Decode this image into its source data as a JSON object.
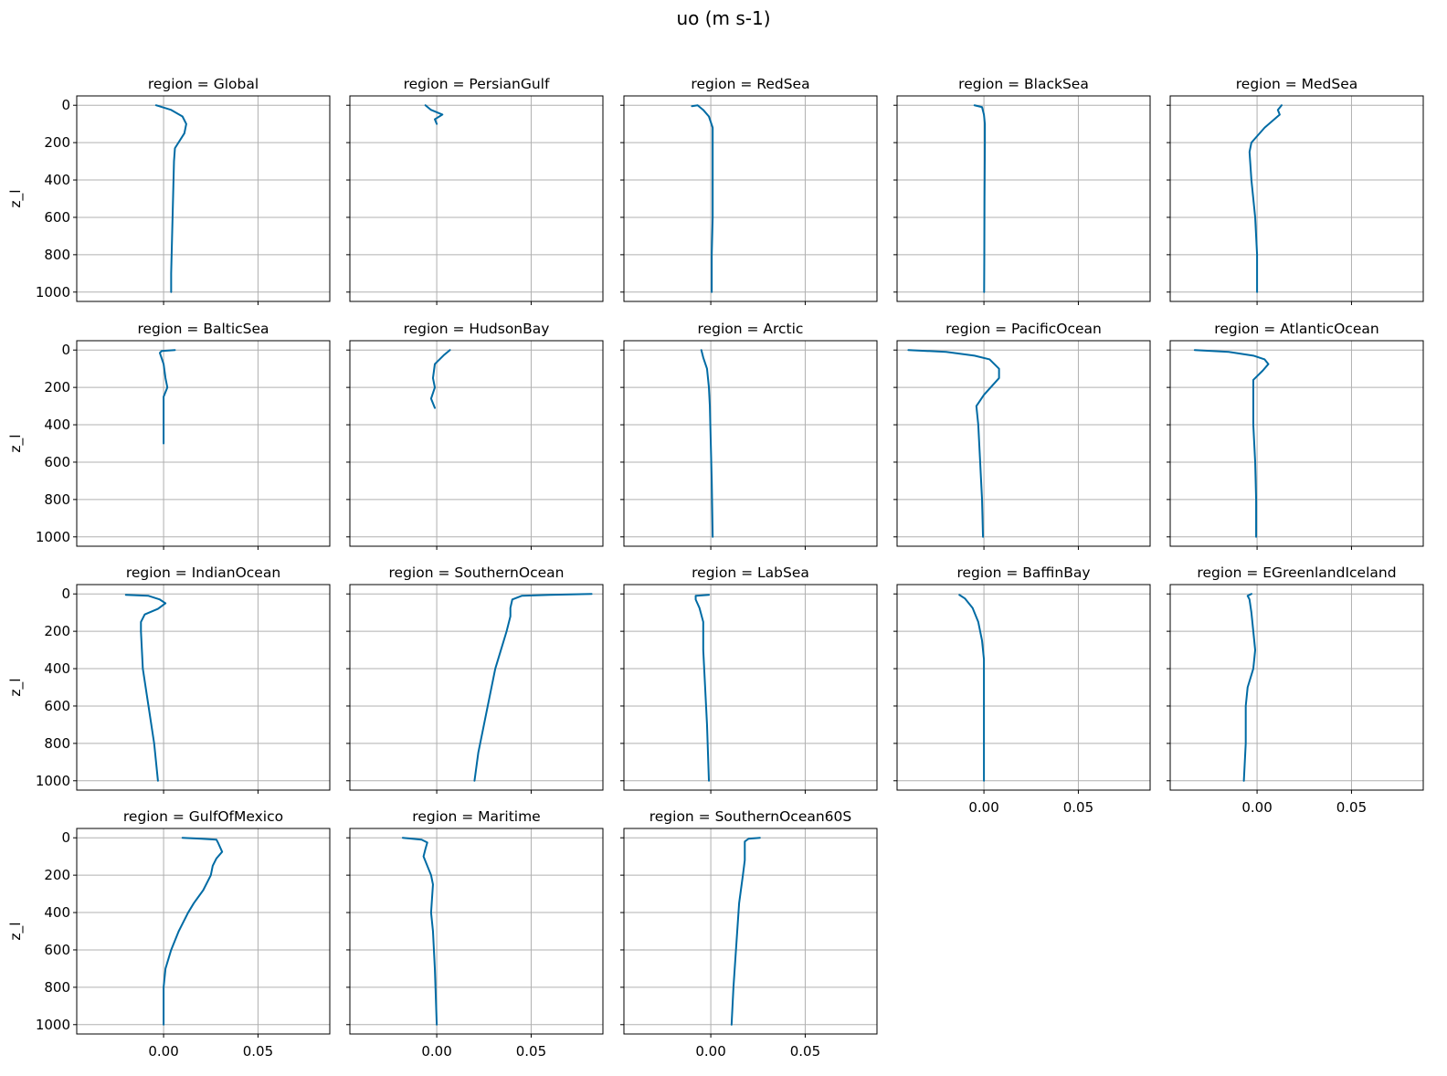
{
  "chart_data": {
    "type": "line",
    "title": "uo (m s-1)",
    "ylabel": "z_l",
    "xticks": [
      0.0,
      0.05
    ],
    "xtick_labels": [
      "0.00",
      "0.05"
    ],
    "yticks": [
      0,
      200,
      400,
      600,
      800,
      1000
    ],
    "ytick_labels": [
      "0",
      "200",
      "400",
      "600",
      "800",
      "1000"
    ],
    "xlim": [
      -0.046,
      0.088
    ],
    "ylim": [
      1050,
      -50
    ],
    "y_inverted": true,
    "grid": true,
    "line_color": "#006ba4",
    "layout": "4x5 facet grid, shared axes",
    "panels": [
      {
        "title": "region = Global",
        "points": [
          [
            -0.004,
            0
          ],
          [
            0.004,
            25
          ],
          [
            0.01,
            60
          ],
          [
            0.012,
            100
          ],
          [
            0.011,
            150
          ],
          [
            0.006,
            230
          ],
          [
            0.0055,
            300
          ],
          [
            0.005,
            500
          ],
          [
            0.0045,
            700
          ],
          [
            0.004,
            900
          ],
          [
            0.004,
            1000
          ]
        ]
      },
      {
        "title": "region = PersianGulf",
        "points": [
          [
            -0.006,
            0
          ],
          [
            -0.003,
            25
          ],
          [
            0.003,
            50
          ],
          [
            -0.001,
            75
          ],
          [
            0.0,
            100
          ]
        ]
      },
      {
        "title": "region = RedSea",
        "points": [
          [
            -0.01,
            5
          ],
          [
            -0.007,
            0
          ],
          [
            -0.004,
            25
          ],
          [
            -0.001,
            60
          ],
          [
            0.001,
            120
          ],
          [
            0.001,
            200
          ],
          [
            0.001,
            400
          ],
          [
            0.001,
            600
          ],
          [
            0.0005,
            800
          ],
          [
            0.0005,
            1000
          ]
        ]
      },
      {
        "title": "region = BlackSea",
        "points": [
          [
            -0.005,
            0
          ],
          [
            -0.001,
            10
          ],
          [
            0.0,
            50
          ],
          [
            0.0005,
            100
          ],
          [
            0.0005,
            200
          ],
          [
            0.0003,
            500
          ],
          [
            0.0002,
            800
          ],
          [
            0.0001,
            1000
          ]
        ]
      },
      {
        "title": "region = MedSea",
        "points": [
          [
            0.013,
            0
          ],
          [
            0.011,
            25
          ],
          [
            0.012,
            50
          ],
          [
            0.004,
            120
          ],
          [
            -0.003,
            200
          ],
          [
            -0.004,
            250
          ],
          [
            -0.003,
            400
          ],
          [
            -0.001,
            600
          ],
          [
            0.0,
            800
          ],
          [
            0.0,
            1000
          ]
        ]
      },
      {
        "title": "region = BalticSea",
        "points": [
          [
            0.006,
            0
          ],
          [
            -0.001,
            5
          ],
          [
            -0.002,
            15
          ],
          [
            0.0,
            75
          ],
          [
            0.001,
            150
          ],
          [
            0.002,
            200
          ],
          [
            0.0,
            250
          ],
          [
            0.0,
            400
          ],
          [
            0.0,
            500
          ]
        ]
      },
      {
        "title": "region = HudsonBay",
        "points": [
          [
            0.007,
            0
          ],
          [
            0.004,
            25
          ],
          [
            -0.001,
            75
          ],
          [
            -0.002,
            150
          ],
          [
            -0.001,
            200
          ],
          [
            -0.003,
            260
          ],
          [
            -0.001,
            310
          ]
        ]
      },
      {
        "title": "region = Arctic",
        "points": [
          [
            -0.005,
            0
          ],
          [
            -0.004,
            40
          ],
          [
            -0.002,
            100
          ],
          [
            -0.001,
            200
          ],
          [
            -0.0005,
            300
          ],
          [
            0.0,
            500
          ],
          [
            0.0005,
            700
          ],
          [
            0.001,
            1000
          ]
        ]
      },
      {
        "title": "region = PacificOcean",
        "points": [
          [
            -0.04,
            0
          ],
          [
            -0.02,
            10
          ],
          [
            -0.005,
            30
          ],
          [
            0.003,
            50
          ],
          [
            0.008,
            100
          ],
          [
            0.008,
            150
          ],
          [
            0.0,
            240
          ],
          [
            -0.004,
            300
          ],
          [
            -0.003,
            400
          ],
          [
            -0.002,
            600
          ],
          [
            -0.001,
            800
          ],
          [
            -0.0005,
            1000
          ]
        ]
      },
      {
        "title": "region = AtlanticOcean",
        "points": [
          [
            -0.033,
            0
          ],
          [
            -0.015,
            10
          ],
          [
            -0.002,
            30
          ],
          [
            0.004,
            50
          ],
          [
            0.006,
            75
          ],
          [
            0.003,
            110
          ],
          [
            -0.002,
            160
          ],
          [
            -0.002,
            250
          ],
          [
            -0.002,
            400
          ],
          [
            -0.001,
            600
          ],
          [
            -0.0005,
            800
          ],
          [
            -0.0005,
            1000
          ]
        ]
      },
      {
        "title": "region = IndianOcean",
        "points": [
          [
            -0.02,
            5
          ],
          [
            -0.008,
            10
          ],
          [
            -0.002,
            30
          ],
          [
            0.001,
            50
          ],
          [
            -0.003,
            80
          ],
          [
            -0.01,
            110
          ],
          [
            -0.012,
            150
          ],
          [
            -0.012,
            200
          ],
          [
            -0.011,
            400
          ],
          [
            -0.008,
            600
          ],
          [
            -0.005,
            800
          ],
          [
            -0.003,
            1000
          ]
        ]
      },
      {
        "title": "region = SouthernOcean",
        "points": [
          [
            0.082,
            0
          ],
          [
            0.06,
            5
          ],
          [
            0.045,
            10
          ],
          [
            0.04,
            30
          ],
          [
            0.039,
            75
          ],
          [
            0.039,
            120
          ],
          [
            0.037,
            200
          ],
          [
            0.034,
            300
          ],
          [
            0.031,
            400
          ],
          [
            0.028,
            550
          ],
          [
            0.025,
            700
          ],
          [
            0.022,
            850
          ],
          [
            0.02,
            1000
          ]
        ]
      },
      {
        "title": "region = LabSea",
        "points": [
          [
            -0.001,
            5
          ],
          [
            -0.008,
            10
          ],
          [
            -0.008,
            30
          ],
          [
            -0.006,
            75
          ],
          [
            -0.004,
            150
          ],
          [
            -0.004,
            300
          ],
          [
            -0.003,
            500
          ],
          [
            -0.002,
            700
          ],
          [
            -0.001,
            1000
          ]
        ]
      },
      {
        "title": "region = BaffinBay",
        "points": [
          [
            -0.013,
            5
          ],
          [
            -0.01,
            25
          ],
          [
            -0.006,
            75
          ],
          [
            -0.003,
            150
          ],
          [
            -0.001,
            250
          ],
          [
            0.0,
            350
          ],
          [
            0.0,
            600
          ],
          [
            0.0,
            800
          ],
          [
            0.0,
            1000
          ]
        ]
      },
      {
        "title": "region = EGreenlandIceland",
        "points": [
          [
            -0.003,
            0
          ],
          [
            -0.005,
            10
          ],
          [
            -0.004,
            30
          ],
          [
            -0.003,
            100
          ],
          [
            -0.002,
            200
          ],
          [
            -0.001,
            300
          ],
          [
            -0.002,
            400
          ],
          [
            -0.005,
            500
          ],
          [
            -0.006,
            600
          ],
          [
            -0.006,
            800
          ],
          [
            -0.007,
            1000
          ]
        ]
      },
      {
        "title": "region = GulfOfMexico",
        "points": [
          [
            0.01,
            0
          ],
          [
            0.02,
            5
          ],
          [
            0.028,
            10
          ],
          [
            0.029,
            30
          ],
          [
            0.031,
            75
          ],
          [
            0.028,
            110
          ],
          [
            0.026,
            150
          ],
          [
            0.025,
            200
          ],
          [
            0.021,
            280
          ],
          [
            0.016,
            350
          ],
          [
            0.013,
            400
          ],
          [
            0.008,
            500
          ],
          [
            0.004,
            600
          ],
          [
            0.001,
            700
          ],
          [
            0.0,
            800
          ],
          [
            0.0,
            1000
          ]
        ]
      },
      {
        "title": "region = Maritime",
        "points": [
          [
            -0.018,
            0
          ],
          [
            -0.008,
            10
          ],
          [
            -0.005,
            25
          ],
          [
            -0.006,
            60
          ],
          [
            -0.007,
            100
          ],
          [
            -0.005,
            150
          ],
          [
            -0.003,
            200
          ],
          [
            -0.002,
            250
          ],
          [
            -0.003,
            400
          ],
          [
            -0.002,
            500
          ],
          [
            -0.001,
            700
          ],
          [
            0.0,
            1000
          ]
        ]
      },
      {
        "title": "region = SouthernOcean60S",
        "points": [
          [
            0.026,
            0
          ],
          [
            0.02,
            5
          ],
          [
            0.018,
            20
          ],
          [
            0.018,
            60
          ],
          [
            0.018,
            120
          ],
          [
            0.017,
            200
          ],
          [
            0.015,
            350
          ],
          [
            0.014,
            500
          ],
          [
            0.013,
            650
          ],
          [
            0.012,
            800
          ],
          [
            0.011,
            1000
          ]
        ]
      }
    ]
  }
}
